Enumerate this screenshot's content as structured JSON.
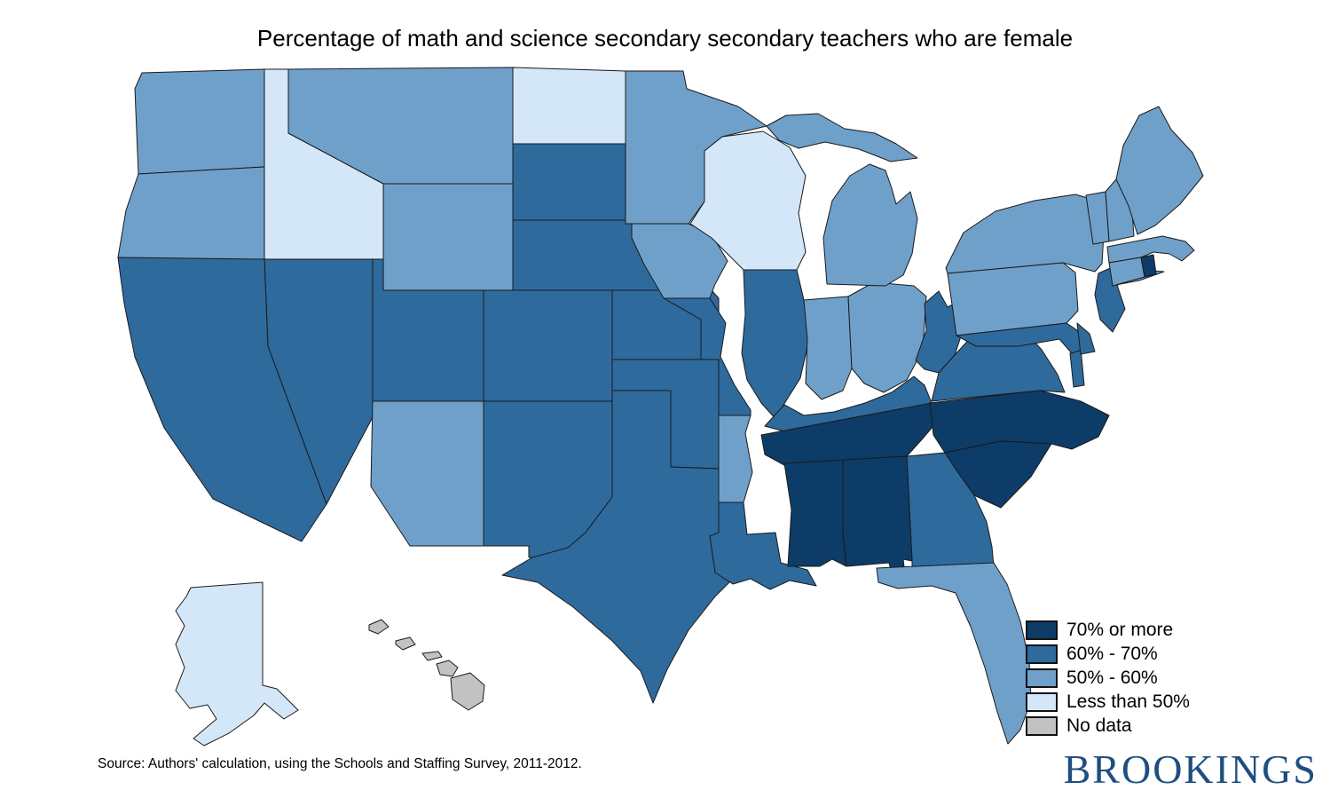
{
  "title": "Percentage of math and science secondary secondary teachers who are female",
  "source_note": "Source: Authors' calculation, using the Schools and Staffing Survey, 2011-2012.",
  "logo_text": "BROOKINGS",
  "colors": {
    "accent_logo_blue": "#1f4e80",
    "border_stroke": "#1a1a1a",
    "category_colors": {
      "70% or more": "#0e3c68",
      "60% - 70%": "#2f6a9d",
      "50% - 60%": "#6fa0c9",
      "Less than 50%": "#d4e7f8",
      "No data": "#c2c2c2"
    }
  },
  "legend": {
    "items": [
      {
        "label": "70% or more"
      },
      {
        "label": "60% - 70%"
      },
      {
        "label": "50% - 60%"
      },
      {
        "label": "Less than 50%"
      },
      {
        "label": "No data"
      }
    ]
  },
  "chart_data": {
    "type": "heatmap",
    "subtype": "us-state-choropleth",
    "title": "Percentage of math and science secondary secondary teachers who are female",
    "legend_categories": [
      "70% or more",
      "60% - 70%",
      "50% - 60%",
      "Less than 50%",
      "No data"
    ],
    "legend_position": "bottom-right",
    "states": [
      {
        "name": "Alabama",
        "abbr": "AL",
        "category": "70% or more"
      },
      {
        "name": "Alaska",
        "abbr": "AK",
        "category": "Less than 50%"
      },
      {
        "name": "Arizona",
        "abbr": "AZ",
        "category": "50% - 60%"
      },
      {
        "name": "Arkansas",
        "abbr": "AR",
        "category": "50% - 60%"
      },
      {
        "name": "California",
        "abbr": "CA",
        "category": "60% - 70%"
      },
      {
        "name": "Colorado",
        "abbr": "CO",
        "category": "60% - 70%"
      },
      {
        "name": "Connecticut",
        "abbr": "CT",
        "category": "50% - 60%"
      },
      {
        "name": "Delaware",
        "abbr": "DE",
        "category": "60% - 70%"
      },
      {
        "name": "Florida",
        "abbr": "FL",
        "category": "50% - 60%"
      },
      {
        "name": "Georgia",
        "abbr": "GA",
        "category": "60% - 70%"
      },
      {
        "name": "Hawaii",
        "abbr": "HI",
        "category": "No data"
      },
      {
        "name": "Idaho",
        "abbr": "ID",
        "category": "Less than 50%"
      },
      {
        "name": "Illinois",
        "abbr": "IL",
        "category": "60% - 70%"
      },
      {
        "name": "Indiana",
        "abbr": "IN",
        "category": "50% - 60%"
      },
      {
        "name": "Iowa",
        "abbr": "IA",
        "category": "50% - 60%"
      },
      {
        "name": "Kansas",
        "abbr": "KS",
        "category": "60% - 70%"
      },
      {
        "name": "Kentucky",
        "abbr": "KY",
        "category": "60% - 70%"
      },
      {
        "name": "Louisiana",
        "abbr": "LA",
        "category": "60% - 70%"
      },
      {
        "name": "Maine",
        "abbr": "ME",
        "category": "50% - 60%"
      },
      {
        "name": "Maryland",
        "abbr": "MD",
        "category": "60% - 70%"
      },
      {
        "name": "Massachusetts",
        "abbr": "MA",
        "category": "50% - 60%"
      },
      {
        "name": "Michigan",
        "abbr": "MI",
        "category": "50% - 60%"
      },
      {
        "name": "Minnesota",
        "abbr": "MN",
        "category": "50% - 60%"
      },
      {
        "name": "Mississippi",
        "abbr": "MS",
        "category": "70% or more"
      },
      {
        "name": "Missouri",
        "abbr": "MO",
        "category": "60% - 70%"
      },
      {
        "name": "Montana",
        "abbr": "MT",
        "category": "50% - 60%"
      },
      {
        "name": "Nebraska",
        "abbr": "NE",
        "category": "60% - 70%"
      },
      {
        "name": "Nevada",
        "abbr": "NV",
        "category": "60% - 70%"
      },
      {
        "name": "New Hampshire",
        "abbr": "NH",
        "category": "50% - 60%"
      },
      {
        "name": "New Jersey",
        "abbr": "NJ",
        "category": "60% - 70%"
      },
      {
        "name": "New Mexico",
        "abbr": "NM",
        "category": "60% - 70%"
      },
      {
        "name": "New York",
        "abbr": "NY",
        "category": "50% - 60%"
      },
      {
        "name": "North Carolina",
        "abbr": "NC",
        "category": "70% or more"
      },
      {
        "name": "North Dakota",
        "abbr": "ND",
        "category": "Less than 50%"
      },
      {
        "name": "Ohio",
        "abbr": "OH",
        "category": "50% - 60%"
      },
      {
        "name": "Oklahoma",
        "abbr": "OK",
        "category": "60% - 70%"
      },
      {
        "name": "Oregon",
        "abbr": "OR",
        "category": "50% - 60%"
      },
      {
        "name": "Pennsylvania",
        "abbr": "PA",
        "category": "50% - 60%"
      },
      {
        "name": "Rhode Island",
        "abbr": "RI",
        "category": "70% or more"
      },
      {
        "name": "South Carolina",
        "abbr": "SC",
        "category": "70% or more"
      },
      {
        "name": "South Dakota",
        "abbr": "SD",
        "category": "60% - 70%"
      },
      {
        "name": "Tennessee",
        "abbr": "TN",
        "category": "70% or more"
      },
      {
        "name": "Texas",
        "abbr": "TX",
        "category": "60% - 70%"
      },
      {
        "name": "Utah",
        "abbr": "UT",
        "category": "60% - 70%"
      },
      {
        "name": "Vermont",
        "abbr": "VT",
        "category": "50% - 60%"
      },
      {
        "name": "Virginia",
        "abbr": "VA",
        "category": "60% - 70%"
      },
      {
        "name": "Washington",
        "abbr": "WA",
        "category": "50% - 60%"
      },
      {
        "name": "West Virginia",
        "abbr": "WV",
        "category": "60% - 70%"
      },
      {
        "name": "Wisconsin",
        "abbr": "WI",
        "category": "Less than 50%"
      },
      {
        "name": "Wyoming",
        "abbr": "WY",
        "category": "50% - 60%"
      }
    ]
  }
}
